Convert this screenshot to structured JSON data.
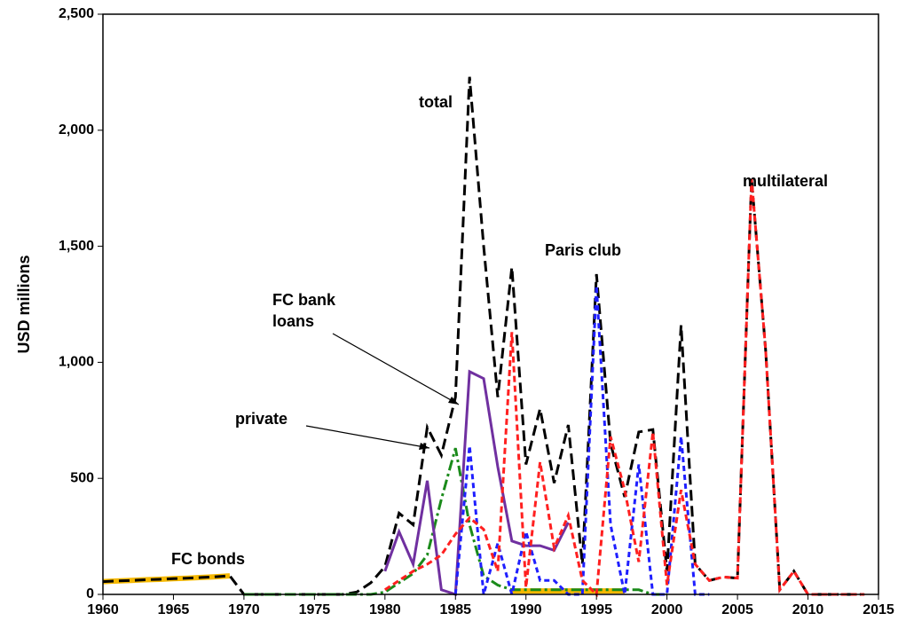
{
  "chart_data": {
    "type": "line",
    "ylabel": "USD millions",
    "x": [
      1960,
      1961,
      1962,
      1963,
      1964,
      1965,
      1966,
      1967,
      1968,
      1969,
      1970,
      1971,
      1972,
      1973,
      1974,
      1975,
      1976,
      1977,
      1978,
      1979,
      1980,
      1981,
      1982,
      1983,
      1984,
      1985,
      1986,
      1987,
      1988,
      1989,
      1990,
      1991,
      1992,
      1993,
      1994,
      1995,
      1996,
      1997,
      1998,
      1999,
      2000,
      2001,
      2002,
      2003,
      2004,
      2005,
      2006,
      2007,
      2008,
      2009,
      2010,
      2011,
      2012,
      2013,
      2014
    ],
    "series": [
      {
        "name": "FC bonds",
        "color": "#f5b800",
        "values": [
          55,
          58,
          60,
          63,
          65,
          68,
          70,
          73,
          76,
          80,
          null,
          null,
          null,
          null,
          null,
          null,
          null,
          null,
          null,
          null,
          null,
          null,
          null,
          null,
          null,
          null,
          null,
          null,
          null,
          15,
          15,
          15,
          15,
          15,
          15,
          15,
          15,
          15,
          null,
          null,
          null,
          null,
          null,
          null,
          null,
          null,
          null,
          null,
          null,
          null,
          null,
          null,
          null,
          null,
          null
        ]
      },
      {
        "name": "total",
        "color": "#000000",
        "values": [
          55,
          58,
          60,
          63,
          65,
          68,
          70,
          73,
          76,
          80,
          0,
          0,
          0,
          0,
          0,
          0,
          0,
          0,
          10,
          50,
          120,
          350,
          300,
          720,
          600,
          850,
          2230,
          1500,
          850,
          1410,
          560,
          800,
          480,
          730,
          130,
          1380,
          650,
          420,
          700,
          710,
          100,
          1160,
          130,
          60,
          75,
          70,
          1790,
          1050,
          20,
          100,
          0,
          0,
          0,
          0,
          0
        ]
      },
      {
        "name": "private",
        "color": "#1a8a1a",
        "values": [
          null,
          null,
          null,
          null,
          null,
          null,
          null,
          null,
          null,
          null,
          0,
          0,
          0,
          0,
          0,
          0,
          0,
          0,
          0,
          0,
          10,
          50,
          90,
          170,
          410,
          630,
          300,
          80,
          40,
          20,
          20,
          20,
          20,
          20,
          20,
          20,
          20,
          20,
          20,
          0,
          0,
          null,
          null,
          null,
          null,
          null,
          null,
          null,
          null,
          null,
          null,
          null,
          null,
          null,
          null
        ]
      },
      {
        "name": "FC bank loans",
        "color": "#7030a0",
        "values": [
          null,
          null,
          null,
          null,
          null,
          null,
          null,
          null,
          null,
          null,
          null,
          null,
          null,
          null,
          null,
          null,
          null,
          null,
          null,
          null,
          100,
          270,
          130,
          490,
          20,
          0,
          960,
          930,
          550,
          230,
          210,
          210,
          190,
          310,
          null,
          null,
          null,
          null,
          null,
          null,
          null,
          null,
          null,
          null,
          null,
          null,
          null,
          null,
          null,
          null,
          null,
          null,
          null,
          null,
          null
        ]
      },
      {
        "name": "Paris club",
        "color": "#1f1fff",
        "values": [
          null,
          null,
          null,
          null,
          null,
          null,
          null,
          null,
          null,
          null,
          null,
          null,
          null,
          null,
          null,
          null,
          null,
          null,
          null,
          null,
          null,
          null,
          null,
          null,
          null,
          0,
          640,
          0,
          220,
          0,
          270,
          60,
          60,
          0,
          0,
          1330,
          300,
          0,
          560,
          0,
          0,
          680,
          0,
          0,
          null,
          null,
          null,
          null,
          null,
          null,
          null,
          null,
          null,
          null,
          null
        ]
      },
      {
        "name": "multilateral",
        "color": "#ff2020",
        "values": [
          null,
          null,
          null,
          null,
          null,
          null,
          null,
          null,
          null,
          null,
          null,
          null,
          null,
          null,
          null,
          null,
          null,
          null,
          null,
          null,
          20,
          60,
          100,
          130,
          170,
          260,
          330,
          280,
          100,
          1130,
          30,
          570,
          200,
          340,
          60,
          0,
          680,
          450,
          140,
          700,
          40,
          450,
          130,
          60,
          75,
          70,
          1790,
          1050,
          20,
          100,
          0,
          0,
          0,
          0,
          0
        ]
      }
    ],
    "xlim": [
      1960,
      2015
    ],
    "xticks": [
      1960,
      1965,
      1970,
      1975,
      1980,
      1985,
      1990,
      1995,
      2000,
      2005,
      2010,
      2015
    ],
    "ylim": [
      0,
      2500
    ],
    "yticks": [
      0,
      500,
      {
        "value": 1000,
        "label": "1,000"
      },
      {
        "value": 1500,
        "label": "1,500"
      },
      {
        "value": 2000,
        "label": "2,000"
      },
      {
        "value": 2500,
        "label": "2,500"
      }
    ]
  }
}
